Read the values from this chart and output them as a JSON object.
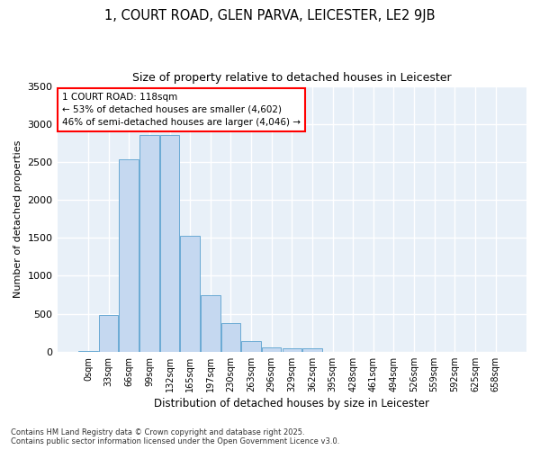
{
  "title": "1, COURT ROAD, GLEN PARVA, LEICESTER, LE2 9JB",
  "subtitle": "Size of property relative to detached houses in Leicester",
  "xlabel": "Distribution of detached houses by size in Leicester",
  "ylabel": "Number of detached properties",
  "categories": [
    "0sqm",
    "33sqm",
    "66sqm",
    "99sqm",
    "132sqm",
    "165sqm",
    "197sqm",
    "230sqm",
    "263sqm",
    "296sqm",
    "329sqm",
    "362sqm",
    "395sqm",
    "428sqm",
    "461sqm",
    "494sqm",
    "526sqm",
    "559sqm",
    "592sqm",
    "625sqm",
    "658sqm"
  ],
  "bar_heights": [
    15,
    480,
    2530,
    2860,
    2860,
    1530,
    750,
    380,
    140,
    60,
    40,
    40,
    0,
    0,
    0,
    0,
    0,
    0,
    0,
    0,
    0
  ],
  "bar_color": "#c5d8f0",
  "bar_edge_color": "#6aaad4",
  "annotation_line1": "1 COURT ROAD: 118sqm",
  "annotation_line2": "← 53% of detached houses are smaller (4,602)",
  "annotation_line3": "46% of semi-detached houses are larger (4,046) →",
  "ylim": [
    0,
    3500
  ],
  "yticks": [
    0,
    500,
    1000,
    1500,
    2000,
    2500,
    3000,
    3500
  ],
  "background_color": "#ffffff",
  "plot_bg_color": "#e8f0f8",
  "grid_color": "#ffffff",
  "footer_line1": "Contains HM Land Registry data © Crown copyright and database right 2025.",
  "footer_line2": "Contains public sector information licensed under the Open Government Licence v3.0."
}
